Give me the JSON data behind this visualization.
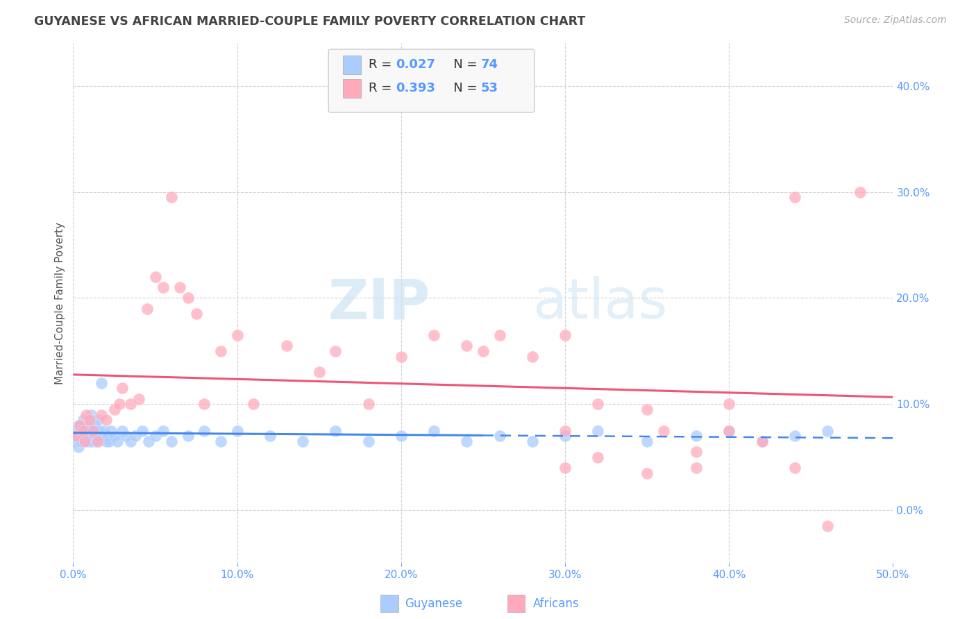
{
  "title": "GUYANESE VS AFRICAN MARRIED-COUPLE FAMILY POVERTY CORRELATION CHART",
  "source": "Source: ZipAtlas.com",
  "ylabel": "Married-Couple Family Poverty",
  "xlim": [
    0.0,
    0.5
  ],
  "ylim": [
    -0.05,
    0.44
  ],
  "xticks": [
    0.0,
    0.1,
    0.2,
    0.3,
    0.4,
    0.5
  ],
  "yticks": [
    0.0,
    0.1,
    0.2,
    0.3,
    0.4
  ],
  "background_color": "#ffffff",
  "grid_color": "#cccccc",
  "title_color": "#444444",
  "axis_color": "#5599ff",
  "guyanese_color": "#aaccff",
  "africans_color": "#ffaabb",
  "guyanese_line_color": "#4488ee",
  "africans_line_color": "#ee5577",
  "watermark_zip": "ZIP",
  "watermark_atlas": "atlas",
  "guyanese_label": "Guyanese",
  "africans_label": "Africans",
  "guyanese_R": "0.027",
  "africans_R": "0.393",
  "guyanese_N": "74",
  "africans_N": "53",
  "guyanese_x": [
    0.001,
    0.002,
    0.002,
    0.003,
    0.003,
    0.003,
    0.004,
    0.004,
    0.005,
    0.005,
    0.005,
    0.006,
    0.006,
    0.006,
    0.007,
    0.007,
    0.007,
    0.008,
    0.008,
    0.009,
    0.009,
    0.009,
    0.01,
    0.01,
    0.01,
    0.011,
    0.011,
    0.012,
    0.012,
    0.013,
    0.013,
    0.014,
    0.015,
    0.015,
    0.016,
    0.017,
    0.018,
    0.019,
    0.02,
    0.021,
    0.022,
    0.023,
    0.025,
    0.027,
    0.03,
    0.032,
    0.035,
    0.038,
    0.042,
    0.046,
    0.05,
    0.055,
    0.06,
    0.07,
    0.08,
    0.09,
    0.1,
    0.12,
    0.14,
    0.16,
    0.18,
    0.2,
    0.22,
    0.24,
    0.26,
    0.28,
    0.3,
    0.32,
    0.35,
    0.38,
    0.4,
    0.42,
    0.44,
    0.46
  ],
  "guyanese_y": [
    0.07,
    0.065,
    0.075,
    0.06,
    0.08,
    0.07,
    0.065,
    0.08,
    0.07,
    0.075,
    0.065,
    0.08,
    0.07,
    0.085,
    0.075,
    0.065,
    0.08,
    0.07,
    0.08,
    0.075,
    0.065,
    0.085,
    0.075,
    0.065,
    0.08,
    0.07,
    0.09,
    0.075,
    0.065,
    0.08,
    0.07,
    0.065,
    0.085,
    0.07,
    0.075,
    0.12,
    0.07,
    0.075,
    0.065,
    0.07,
    0.065,
    0.075,
    0.07,
    0.065,
    0.075,
    0.07,
    0.065,
    0.07,
    0.075,
    0.065,
    0.07,
    0.075,
    0.065,
    0.07,
    0.075,
    0.065,
    0.075,
    0.07,
    0.065,
    0.075,
    0.065,
    0.07,
    0.075,
    0.065,
    0.07,
    0.065,
    0.07,
    0.075,
    0.065,
    0.07,
    0.075,
    0.065,
    0.07,
    0.075
  ],
  "africans_x": [
    0.002,
    0.004,
    0.006,
    0.007,
    0.008,
    0.01,
    0.012,
    0.015,
    0.017,
    0.02,
    0.025,
    0.028,
    0.03,
    0.035,
    0.04,
    0.045,
    0.05,
    0.055,
    0.06,
    0.065,
    0.07,
    0.075,
    0.08,
    0.09,
    0.1,
    0.11,
    0.13,
    0.15,
    0.16,
    0.18,
    0.2,
    0.22,
    0.24,
    0.26,
    0.28,
    0.3,
    0.32,
    0.35,
    0.38,
    0.4,
    0.42,
    0.44,
    0.46,
    0.48,
    0.3,
    0.32,
    0.36,
    0.38,
    0.4,
    0.44,
    0.25,
    0.3,
    0.35
  ],
  "africans_y": [
    0.07,
    0.08,
    0.075,
    0.065,
    0.09,
    0.085,
    0.075,
    0.065,
    0.09,
    0.085,
    0.095,
    0.1,
    0.115,
    0.1,
    0.105,
    0.19,
    0.22,
    0.21,
    0.295,
    0.21,
    0.2,
    0.185,
    0.1,
    0.15,
    0.165,
    0.1,
    0.155,
    0.13,
    0.15,
    0.1,
    0.145,
    0.165,
    0.155,
    0.165,
    0.145,
    0.04,
    0.05,
    0.035,
    0.04,
    0.1,
    0.065,
    0.04,
    -0.015,
    0.3,
    0.075,
    0.1,
    0.075,
    0.055,
    0.075,
    0.295,
    0.15,
    0.165,
    0.095
  ]
}
